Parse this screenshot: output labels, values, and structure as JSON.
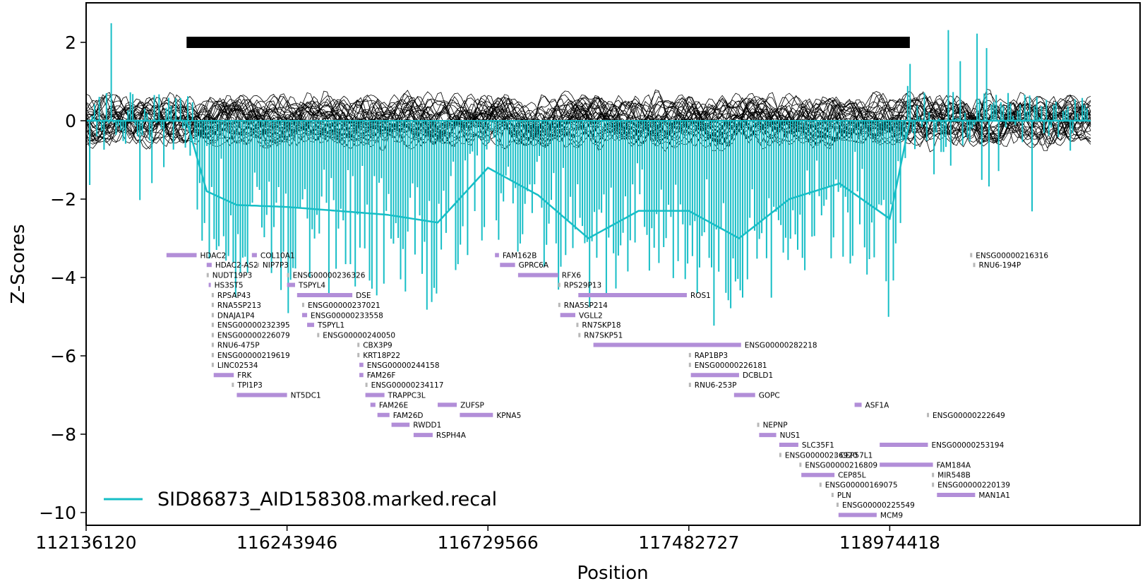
{
  "chart_data": {
    "type": "line",
    "xlabel": "Position",
    "ylabel": "Z-Scores",
    "ylim": [
      -10.3,
      3.0
    ],
    "y_ticks": [
      2,
      0,
      -2,
      -4,
      -6,
      -8,
      -10
    ],
    "x_tick_labels": [
      "112136120",
      "116243946",
      "116729566",
      "117482727",
      "118974418"
    ],
    "grid": false,
    "legend_position": "lower-left",
    "colors": {
      "sample": "#17bec6",
      "reference": "#000000",
      "gene_major": "#b28ed8",
      "gene_minor": "#b8b8b8",
      "cnv_bar": "#000000"
    },
    "cnv_segment": {
      "y": 2.0,
      "x_start": 1.0,
      "x_end": 8.2
    },
    "series": [
      {
        "name": "SID86873_AID158308.marked.recal",
        "role": "sample_smoothed",
        "x": [
          0.0,
          0.5,
          1.0,
          1.2,
          1.5,
          2.0,
          2.5,
          3.0,
          3.5,
          4.0,
          4.5,
          5.0,
          5.5,
          6.0,
          6.5,
          7.0,
          7.5,
          8.0,
          8.2,
          8.5,
          9.0,
          9.5,
          10.0
        ],
        "values": [
          0.0,
          0.0,
          0.0,
          -1.8,
          -2.15,
          -2.2,
          -2.3,
          -2.4,
          -2.6,
          -1.2,
          -1.9,
          -3.0,
          -2.3,
          -2.3,
          -3.0,
          -2.0,
          -1.6,
          -2.5,
          0.0,
          0.0,
          0.0,
          0.0,
          0.0
        ]
      }
    ],
    "genes": [
      {
        "name": "HDAC2",
        "start": 0.8,
        "end": 1.1,
        "y": -3.43,
        "major": true
      },
      {
        "name": "COL10A1",
        "start": 1.65,
        "end": 1.7,
        "y": -3.43,
        "major": true
      },
      {
        "name": "HDAC2-AS2",
        "start": 1.2,
        "end": 1.25,
        "y": -3.68,
        "major": true
      },
      {
        "name": "NIP7P3",
        "start": 1.7,
        "end": 1.72,
        "y": -3.68,
        "major": false
      },
      {
        "name": "NUDT19P3",
        "start": 1.2,
        "end": 1.22,
        "y": -3.94,
        "major": false
      },
      {
        "name": "ENSG00000236326",
        "start": 2.0,
        "end": 2.02,
        "y": -3.94,
        "major": false
      },
      {
        "name": "HS3ST5",
        "start": 1.22,
        "end": 1.24,
        "y": -4.19,
        "major": true
      },
      {
        "name": "TSPYL4",
        "start": 2.0,
        "end": 2.08,
        "y": -4.19,
        "major": true
      },
      {
        "name": "RPSAP43",
        "start": 1.25,
        "end": 1.27,
        "y": -4.45,
        "major": false
      },
      {
        "name": "DSE",
        "start": 2.1,
        "end": 2.65,
        "y": -4.45,
        "major": true
      },
      {
        "name": "RNA5SP213",
        "start": 1.25,
        "end": 1.27,
        "y": -4.7,
        "major": false
      },
      {
        "name": "ENSG00000237021",
        "start": 2.15,
        "end": 2.16,
        "y": -4.7,
        "major": false
      },
      {
        "name": "DNAJA1P4",
        "start": 1.25,
        "end": 1.27,
        "y": -4.96,
        "major": false
      },
      {
        "name": "ENSG00000233558",
        "start": 2.15,
        "end": 2.2,
        "y": -4.96,
        "major": true
      },
      {
        "name": "ENSG00000232395",
        "start": 1.25,
        "end": 1.27,
        "y": -5.21,
        "major": false
      },
      {
        "name": "TSPYL1",
        "start": 2.2,
        "end": 2.27,
        "y": -5.21,
        "major": true
      },
      {
        "name": "ENSG00000226079",
        "start": 1.25,
        "end": 1.27,
        "y": -5.47,
        "major": false
      },
      {
        "name": "ENSG00000240050",
        "start": 2.3,
        "end": 2.31,
        "y": -5.47,
        "major": false
      },
      {
        "name": "RNU6-475P",
        "start": 1.25,
        "end": 1.27,
        "y": -5.72,
        "major": false
      },
      {
        "name": "CBX3P9",
        "start": 2.7,
        "end": 2.72,
        "y": -5.72,
        "major": false
      },
      {
        "name": "ENSG00000219619",
        "start": 1.25,
        "end": 1.27,
        "y": -5.98,
        "major": false
      },
      {
        "name": "KRT18P22",
        "start": 2.7,
        "end": 2.72,
        "y": -5.98,
        "major": false
      },
      {
        "name": "LINC02534",
        "start": 1.25,
        "end": 1.27,
        "y": -6.23,
        "major": false
      },
      {
        "name": "ENSG00000244158",
        "start": 2.72,
        "end": 2.76,
        "y": -6.23,
        "major": true
      },
      {
        "name": "FRK",
        "start": 1.27,
        "end": 1.47,
        "y": -6.49,
        "major": true
      },
      {
        "name": "FAM26F",
        "start": 2.72,
        "end": 2.76,
        "y": -6.49,
        "major": true
      },
      {
        "name": "TPI1P3",
        "start": 1.45,
        "end": 1.47,
        "y": -6.74,
        "major": false
      },
      {
        "name": "ENSG00000234117",
        "start": 2.78,
        "end": 2.79,
        "y": -6.74,
        "major": false
      },
      {
        "name": "NT5DC1",
        "start": 1.5,
        "end": 2.0,
        "y": -7.0,
        "major": true
      },
      {
        "name": "TRAPPC3L",
        "start": 2.78,
        "end": 2.97,
        "y": -7.0,
        "major": true
      },
      {
        "name": "FAM26E",
        "start": 2.83,
        "end": 2.88,
        "y": -7.25,
        "major": true
      },
      {
        "name": "ZUFSP",
        "start": 3.5,
        "end": 3.69,
        "y": -7.25,
        "major": true
      },
      {
        "name": "FAM26D",
        "start": 2.9,
        "end": 3.02,
        "y": -7.51,
        "major": true
      },
      {
        "name": "KPNA5",
        "start": 3.72,
        "end": 4.05,
        "y": -7.51,
        "major": true
      },
      {
        "name": "RWDD1",
        "start": 3.04,
        "end": 3.22,
        "y": -7.76,
        "major": true
      },
      {
        "name": "RSPH4A",
        "start": 3.26,
        "end": 3.45,
        "y": -8.02,
        "major": true
      },
      {
        "name": "FAM162B",
        "start": 4.07,
        "end": 4.11,
        "y": -3.43,
        "major": true
      },
      {
        "name": "GPRC6A",
        "start": 4.12,
        "end": 4.27,
        "y": -3.68,
        "major": true
      },
      {
        "name": "RFX6",
        "start": 4.3,
        "end": 4.7,
        "y": -3.94,
        "major": true
      },
      {
        "name": "RPS29P13",
        "start": 4.7,
        "end": 4.72,
        "y": -4.19,
        "major": false
      },
      {
        "name": "ROS1",
        "start": 4.9,
        "end": 5.98,
        "y": -4.45,
        "major": true
      },
      {
        "name": "RNA5SP214",
        "start": 4.7,
        "end": 4.72,
        "y": -4.7,
        "major": false
      },
      {
        "name": "VGLL2",
        "start": 4.72,
        "end": 4.87,
        "y": -4.96,
        "major": true
      },
      {
        "name": "RN7SKP18",
        "start": 4.88,
        "end": 4.9,
        "y": -5.21,
        "major": false
      },
      {
        "name": "RN7SKP51",
        "start": 4.9,
        "end": 4.92,
        "y": -5.47,
        "major": false
      },
      {
        "name": "ENSG00000282218",
        "start": 5.05,
        "end": 6.52,
        "y": -5.72,
        "major": true
      },
      {
        "name": "RAP1BP3",
        "start": 6.0,
        "end": 6.02,
        "y": -5.98,
        "major": false
      },
      {
        "name": "ENSG00000226181",
        "start": 6.0,
        "end": 6.02,
        "y": -6.23,
        "major": false
      },
      {
        "name": "DCBLD1",
        "start": 6.02,
        "end": 6.5,
        "y": -6.49,
        "major": true
      },
      {
        "name": "RNU6-253P",
        "start": 6.0,
        "end": 6.02,
        "y": -6.74,
        "major": false
      },
      {
        "name": "GOPC",
        "start": 6.45,
        "end": 6.66,
        "y": -7.0,
        "major": true
      },
      {
        "name": "ASF1A",
        "start": 7.65,
        "end": 7.72,
        "y": -7.25,
        "major": true
      },
      {
        "name": "ENSG00000222649",
        "start": 8.37,
        "end": 8.39,
        "y": -7.51,
        "major": false
      },
      {
        "name": "NEPNP",
        "start": 6.68,
        "end": 6.7,
        "y": -7.76,
        "major": false
      },
      {
        "name": "NUS1",
        "start": 6.7,
        "end": 6.87,
        "y": -8.02,
        "major": true
      },
      {
        "name": "SLC35F1",
        "start": 6.9,
        "end": 7.09,
        "y": -8.27,
        "major": true
      },
      {
        "name": "ENSG00000253194",
        "start": 7.9,
        "end": 8.38,
        "y": -8.27,
        "major": true
      },
      {
        "name": "ENSG00000236920",
        "start": 6.9,
        "end": 6.92,
        "y": -8.53,
        "major": false
      },
      {
        "name": "CEP57L1",
        "start": 7.45,
        "end": 7.47,
        "y": -8.53,
        "major": false
      },
      {
        "name": "ENSG00000216809",
        "start": 7.1,
        "end": 7.12,
        "y": -8.78,
        "major": false
      },
      {
        "name": "FAM184A",
        "start": 7.9,
        "end": 8.43,
        "y": -8.78,
        "major": true
      },
      {
        "name": "CEP85L",
        "start": 7.12,
        "end": 7.45,
        "y": -9.04,
        "major": true
      },
      {
        "name": "MIR548B",
        "start": 8.42,
        "end": 8.43,
        "y": -9.04,
        "major": false
      },
      {
        "name": "ENSG00000169075",
        "start": 7.3,
        "end": 7.32,
        "y": -9.29,
        "major": false
      },
      {
        "name": "ENSG00000220139",
        "start": 8.42,
        "end": 8.44,
        "y": -9.29,
        "major": false
      },
      {
        "name": "PLN",
        "start": 7.42,
        "end": 7.43,
        "y": -9.55,
        "major": false
      },
      {
        "name": "MAN1A1",
        "start": 8.47,
        "end": 8.85,
        "y": -9.55,
        "major": true
      },
      {
        "name": "ENSG00000225549",
        "start": 7.47,
        "end": 7.49,
        "y": -9.8,
        "major": false
      },
      {
        "name": "MCM9",
        "start": 7.49,
        "end": 7.87,
        "y": -10.06,
        "major": true
      },
      {
        "name": "ENSG00000216316",
        "start": 8.8,
        "end": 8.82,
        "y": -3.43,
        "major": false
      },
      {
        "name": "RNU6-194P",
        "start": 8.83,
        "end": 8.85,
        "y": -3.68,
        "major": false
      }
    ]
  }
}
